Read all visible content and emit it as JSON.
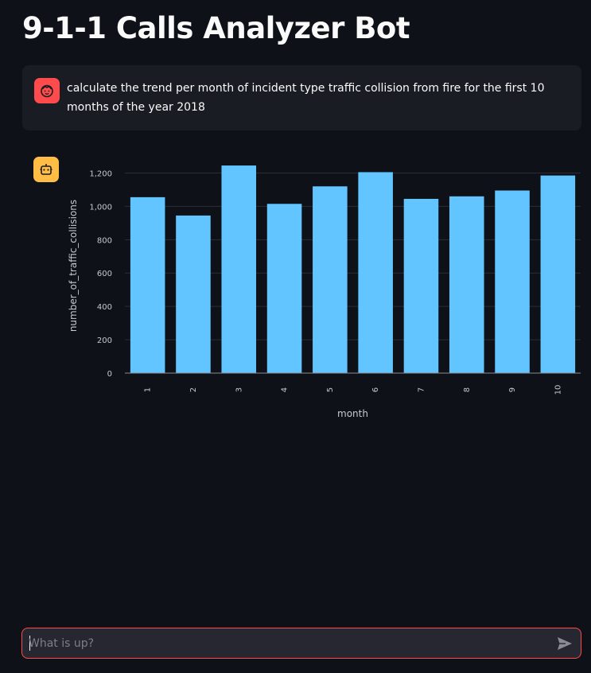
{
  "app": {
    "title": "9-1-1 Calls Analyzer Bot"
  },
  "user_message": {
    "text": "calculate the trend per month of incident type traffic collision from fire for the first 10 months of the year 2018"
  },
  "chart_data": {
    "type": "bar",
    "categories": [
      "1",
      "2",
      "3",
      "4",
      "5",
      "6",
      "7",
      "8",
      "9",
      "10"
    ],
    "values": [
      1055,
      945,
      1245,
      1015,
      1120,
      1205,
      1045,
      1060,
      1095,
      1185
    ],
    "xlabel": "month",
    "ylabel": "number_of_traffic_collisions",
    "ylim": [
      0,
      1250
    ],
    "yticks": [
      0,
      200,
      400,
      600,
      800,
      1000,
      1200
    ],
    "ytick_labels": [
      "0",
      "200",
      "400",
      "600",
      "800",
      "1,000",
      "1,200"
    ],
    "bar_color": "#63c5ff",
    "grid": true
  },
  "chat_input": {
    "placeholder": "What is up?",
    "value": ""
  },
  "colors": {
    "background": "#0e1117",
    "user_avatar": "#ff4b4b",
    "bot_avatar": "#ffbd45",
    "input_border": "#ff4b4b"
  },
  "icons": {
    "user_avatar": "face-icon",
    "bot_avatar": "robot-icon",
    "send": "send-icon"
  }
}
